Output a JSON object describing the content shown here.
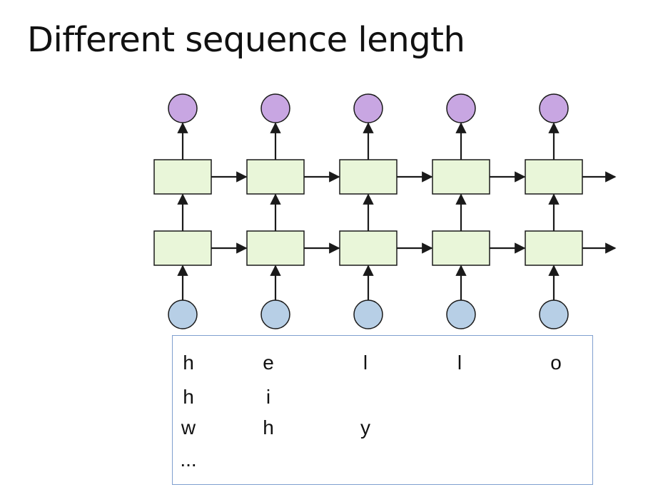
{
  "slide": {
    "title": "Different sequence length"
  },
  "diagram": {
    "columns": 5,
    "layers": 2,
    "colors": {
      "output_node": "#c8a6e2",
      "input_node": "#b7cfe6",
      "cell_fill": "#e9f6d9",
      "stroke": "#1a1a1a",
      "box_border": "#7f9fcf"
    }
  },
  "sequences": [
    [
      "h",
      "e",
      "l",
      "l",
      "o"
    ],
    [
      "h",
      "i"
    ],
    [
      "w",
      "h",
      "y"
    ],
    [
      "..."
    ]
  ]
}
